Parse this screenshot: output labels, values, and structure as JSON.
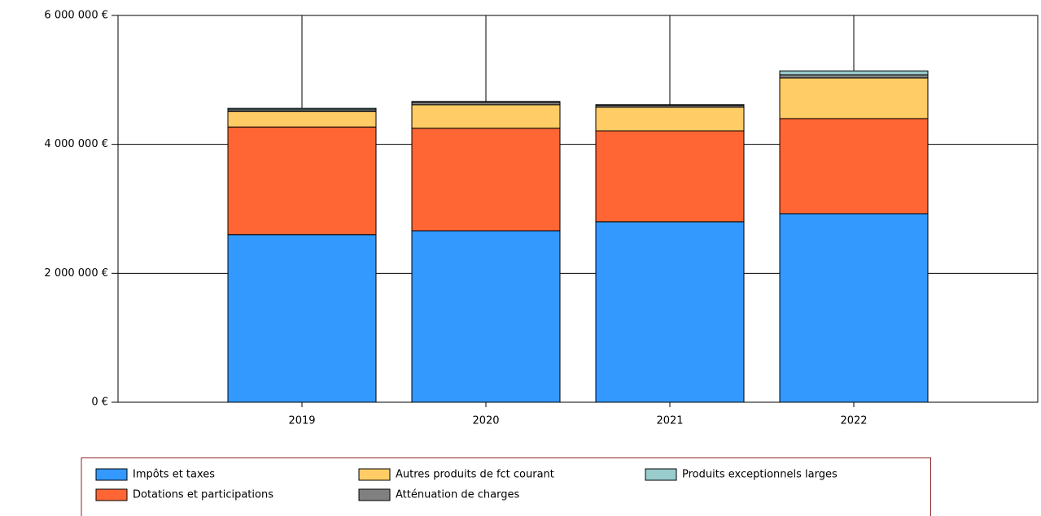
{
  "chart_data": {
    "type": "stacked-bar",
    "categories": [
      "2019",
      "2020",
      "2021",
      "2022"
    ],
    "series": [
      {
        "name": "Impôts et taxes",
        "color": "#3399ff",
        "values": [
          2600000,
          2660000,
          2800000,
          2925000
        ]
      },
      {
        "name": "Dotations et participations",
        "color": "#ff6633",
        "values": [
          1670000,
          1590000,
          1410000,
          1475000
        ]
      },
      {
        "name": "Autres produits de fct courant",
        "color": "#ffcc66",
        "values": [
          240000,
          365000,
          366000,
          630000
        ]
      },
      {
        "name": "Atténuation de charges",
        "color": "#808080",
        "values": [
          30000,
          40000,
          30000,
          50000
        ]
      },
      {
        "name": "Produits exceptionnels larges",
        "color": "#99cccc",
        "values": [
          20000,
          10000,
          10000,
          60000
        ]
      }
    ],
    "ylim": [
      0,
      6000000
    ],
    "yticks": [
      {
        "value": 0,
        "label": "0 €"
      },
      {
        "value": 2000000,
        "label": "2 000 000 €"
      },
      {
        "value": 4000000,
        "label": "4 000 000 €"
      },
      {
        "value": 6000000,
        "label": "6 000 000 €"
      }
    ],
    "grid": true
  }
}
